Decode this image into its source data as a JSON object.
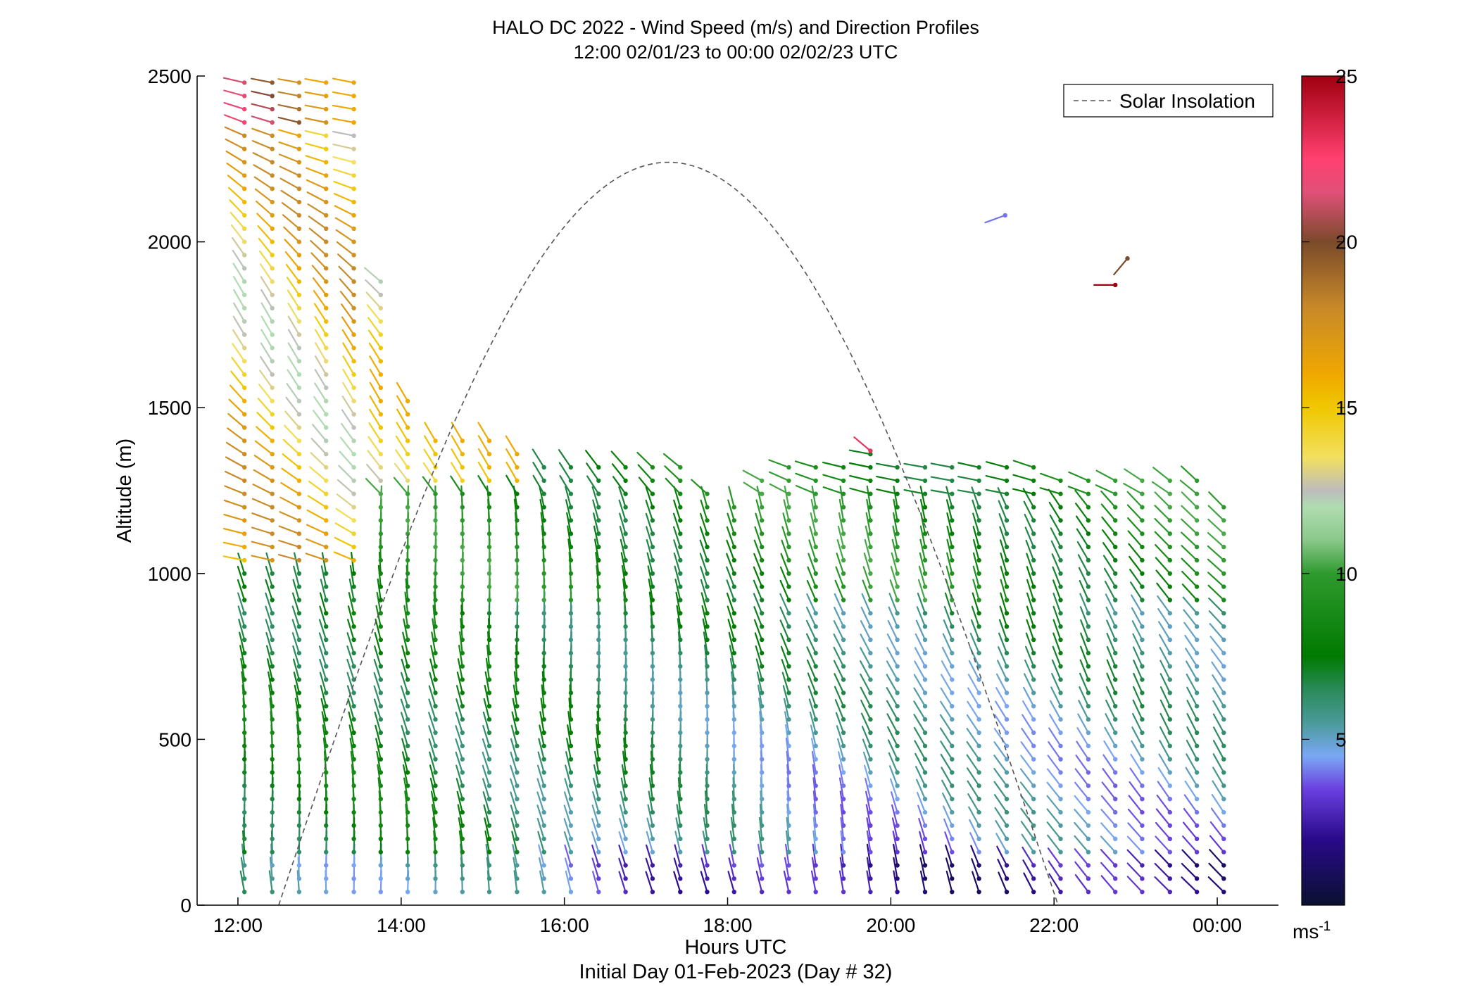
{
  "chart_data": {
    "type": "wind-barb-profile",
    "title_line1": "HALO DC 2022 - Wind Speed (m/s) and Direction Profiles",
    "title_line2": "12:00 02/01/23 to 00:00 02/02/23  UTC",
    "xlabel": "Hours UTC",
    "xlabel2": "Initial Day 01-Feb-2023 (Day # 32)",
    "ylabel": "Altitude (m)",
    "xlim": [
      11.5,
      24.75
    ],
    "ylim": [
      0,
      2500
    ],
    "x_ticks": [
      {
        "value": 12,
        "label": "12:00"
      },
      {
        "value": 14,
        "label": "14:00"
      },
      {
        "value": 16,
        "label": "16:00"
      },
      {
        "value": 18,
        "label": "18:00"
      },
      {
        "value": 20,
        "label": "20:00"
      },
      {
        "value": 22,
        "label": "22:00"
      },
      {
        "value": 24,
        "label": "00:00"
      }
    ],
    "y_ticks": [
      0,
      500,
      1000,
      1500,
      2000,
      2500
    ],
    "colorbar": {
      "range": [
        0,
        25
      ],
      "ticks": [
        5,
        10,
        15,
        20,
        25
      ],
      "unit": "ms-1",
      "stops": [
        [
          0,
          "#0a1030"
        ],
        [
          2,
          "#2a0a8a"
        ],
        [
          3.5,
          "#6a40e0"
        ],
        [
          4.5,
          "#7aa8f5"
        ],
        [
          5.5,
          "#4a9a9a"
        ],
        [
          6.5,
          "#2a8a5a"
        ],
        [
          7.5,
          "#007a00"
        ],
        [
          10,
          "#2e9a2e"
        ],
        [
          11,
          "#8ac88a"
        ],
        [
          12,
          "#b0dcb0"
        ],
        [
          12.5,
          "#bcbcbc"
        ],
        [
          13.5,
          "#f2e060"
        ],
        [
          15,
          "#f0c800"
        ],
        [
          16,
          "#f0a800"
        ],
        [
          18,
          "#c88a28"
        ],
        [
          20,
          "#7a4a2a"
        ],
        [
          21.5,
          "#e05078"
        ],
        [
          22.5,
          "#ff4070"
        ],
        [
          25,
          "#a00010"
        ]
      ]
    },
    "legend": {
      "label": "Solar Insolation",
      "location": "top-right"
    },
    "solar_insolation": {
      "sunrise": 12.5,
      "sunset": 22.05,
      "peak": 2240
    },
    "profiles": {
      "times": [
        12.08,
        12.42,
        12.75,
        13.08,
        13.42,
        13.75,
        14.08,
        14.42,
        14.75,
        15.08,
        15.42,
        15.75,
        16.08,
        16.42,
        16.75,
        17.08,
        17.42,
        17.75,
        18.08,
        18.42,
        18.75,
        19.08,
        19.42,
        19.75,
        20.08,
        20.42,
        20.75,
        21.08,
        21.42,
        21.75,
        22.08,
        22.42,
        22.75,
        23.08,
        23.42,
        23.75,
        24.08
      ],
      "top_altitude": [
        2500,
        2500,
        2500,
        2500,
        2500,
        1880,
        1530,
        1430,
        1410,
        1400,
        1380,
        1330,
        1330,
        1330,
        1330,
        1330,
        1330,
        1250,
        1210,
        1300,
        1330,
        1330,
        1330,
        1380,
        1330,
        1330,
        1330,
        1330,
        1330,
        1330,
        1300,
        1300,
        1300,
        1300,
        1280,
        1280,
        1210
      ],
      "altitude_step_m": 40,
      "isolated_points": [
        {
          "time": 21.4,
          "altitude": 2080,
          "speed": 4,
          "direction_deg": 250
        },
        {
          "time": 22.75,
          "altitude": 1870,
          "speed": 25,
          "direction_deg": 270
        },
        {
          "time": 22.9,
          "altitude": 1950,
          "speed": 20,
          "direction_deg": 220
        },
        {
          "time": 19.75,
          "altitude": 1370,
          "speed": 23,
          "direction_deg": 310
        }
      ]
    }
  }
}
